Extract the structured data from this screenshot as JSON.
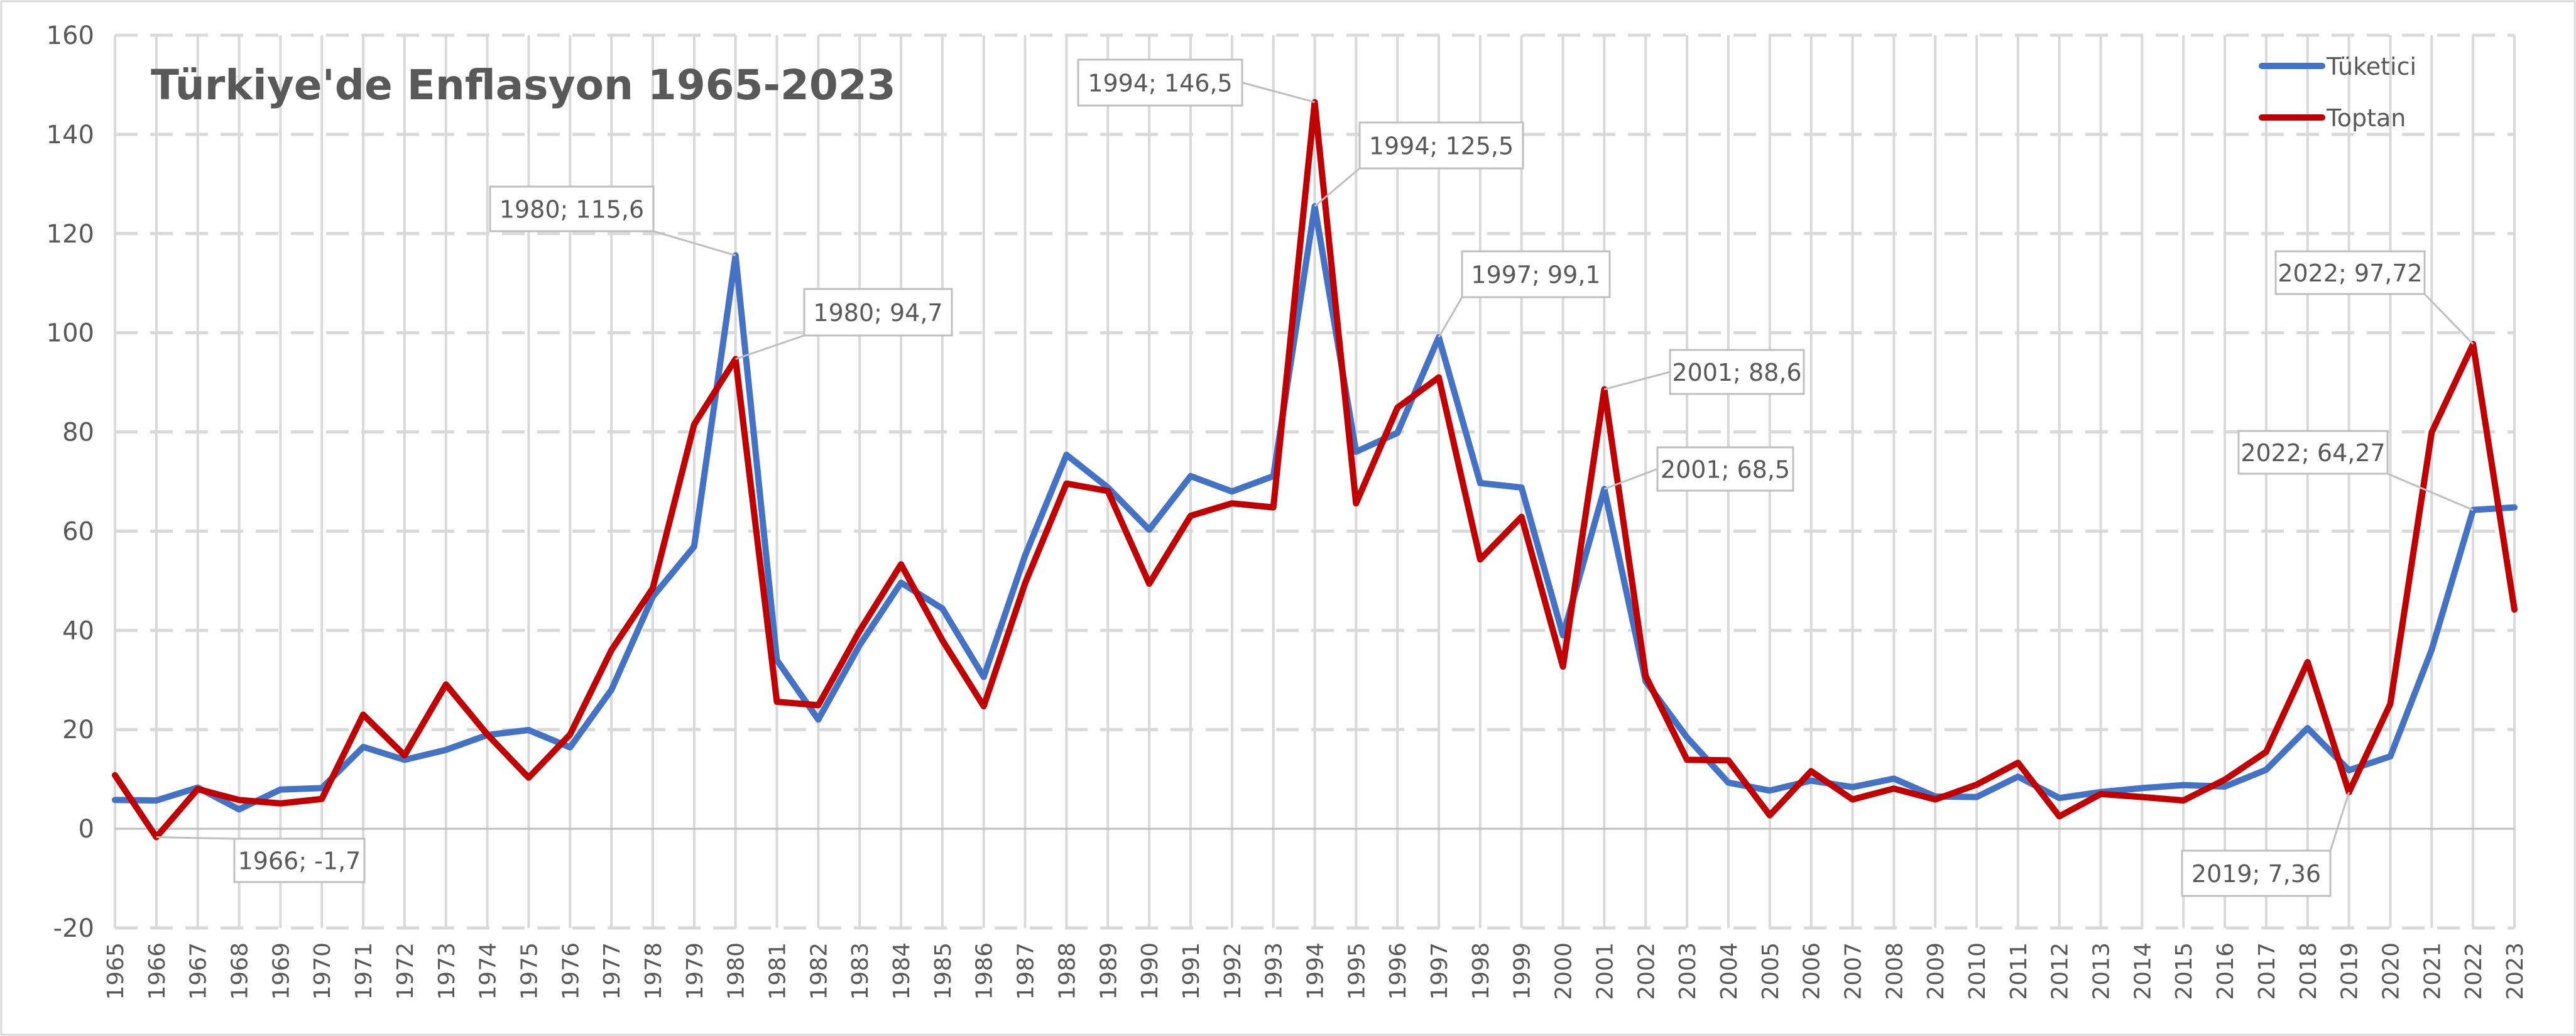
{
  "chart_data": {
    "type": "line",
    "title": "Türkiye'de Enflasyon 1965-2023",
    "xlabel": "",
    "ylabel": "",
    "ylim": [
      -20,
      160
    ],
    "y_ticks": [
      -20,
      0,
      20,
      40,
      60,
      80,
      100,
      120,
      140,
      160
    ],
    "grid": true,
    "legend_position": "top-right",
    "x": [
      1965,
      1966,
      1967,
      1968,
      1969,
      1970,
      1971,
      1972,
      1973,
      1974,
      1975,
      1976,
      1977,
      1978,
      1979,
      1980,
      1981,
      1982,
      1983,
      1984,
      1985,
      1986,
      1987,
      1988,
      1989,
      1990,
      1991,
      1992,
      1993,
      1994,
      1995,
      1996,
      1997,
      1998,
      1999,
      2000,
      2001,
      2002,
      2003,
      2004,
      2005,
      2006,
      2007,
      2008,
      2009,
      2010,
      2011,
      2012,
      2013,
      2014,
      2015,
      2016,
      2017,
      2018,
      2019,
      2020,
      2021,
      2022,
      2023
    ],
    "series": [
      {
        "name": "Tüketici",
        "color": "#4472C4",
        "values": [
          5.8,
          5.7,
          8.3,
          3.9,
          7.9,
          8.2,
          16.5,
          13.9,
          15.9,
          18.9,
          19.9,
          16.4,
          28.0,
          46.8,
          56.9,
          115.6,
          34.0,
          22.0,
          37.0,
          49.6,
          44.4,
          30.6,
          55.1,
          75.4,
          68.8,
          60.3,
          71.1,
          68.0,
          71.1,
          125.5,
          76.0,
          79.8,
          99.1,
          69.7,
          68.8,
          39.0,
          68.5,
          29.7,
          18.4,
          9.3,
          7.7,
          9.7,
          8.4,
          10.1,
          6.5,
          6.4,
          10.5,
          6.2,
          7.4,
          8.2,
          8.8,
          8.5,
          11.9,
          20.3,
          11.8,
          14.6,
          36.1,
          64.27,
          64.8
        ]
      },
      {
        "name": "Toptan",
        "color": "#C00000",
        "values": [
          10.8,
          -1.7,
          8.0,
          5.8,
          5.1,
          6.0,
          23.0,
          14.8,
          29.1,
          19.0,
          10.3,
          19.0,
          36.0,
          48.5,
          81.5,
          94.7,
          25.6,
          24.9,
          39.9,
          53.3,
          38.0,
          24.7,
          49.5,
          69.6,
          68.1,
          49.4,
          63.1,
          65.6,
          64.8,
          146.5,
          65.6,
          84.9,
          91.0,
          54.3,
          62.9,
          32.7,
          88.6,
          30.8,
          13.9,
          13.8,
          2.7,
          11.6,
          5.9,
          8.1,
          5.9,
          8.9,
          13.3,
          2.5,
          7.0,
          6.4,
          5.7,
          9.9,
          15.5,
          33.6,
          7.36,
          25.2,
          79.9,
          97.72,
          44.2
        ]
      }
    ],
    "annotations": [
      {
        "text": "1966; -1,7",
        "series": "Toptan",
        "year": 1966,
        "value": -1.7
      },
      {
        "text": "1980; 115,6",
        "series": "Tüketici",
        "year": 1980,
        "value": 115.6
      },
      {
        "text": "1980; 94,7",
        "series": "Toptan",
        "year": 1980,
        "value": 94.7
      },
      {
        "text": "1994; 146,5",
        "series": "Toptan",
        "year": 1994,
        "value": 146.5
      },
      {
        "text": "1994; 125,5",
        "series": "Tüketici",
        "year": 1994,
        "value": 125.5
      },
      {
        "text": "1997; 99,1",
        "series": "Tüketici",
        "year": 1997,
        "value": 99.1
      },
      {
        "text": "2001; 88,6",
        "series": "Toptan",
        "year": 2001,
        "value": 88.6
      },
      {
        "text": "2001; 68,5",
        "series": "Tüketici",
        "year": 2001,
        "value": 68.5
      },
      {
        "text": "2022; 97,72",
        "series": "Toptan",
        "year": 2022,
        "value": 97.72
      },
      {
        "text": "2022; 64,27",
        "series": "Tüketici",
        "year": 2022,
        "value": 64.27
      },
      {
        "text": "2019; 7,36",
        "series": "Toptan",
        "year": 2019,
        "value": 7.36
      }
    ]
  }
}
